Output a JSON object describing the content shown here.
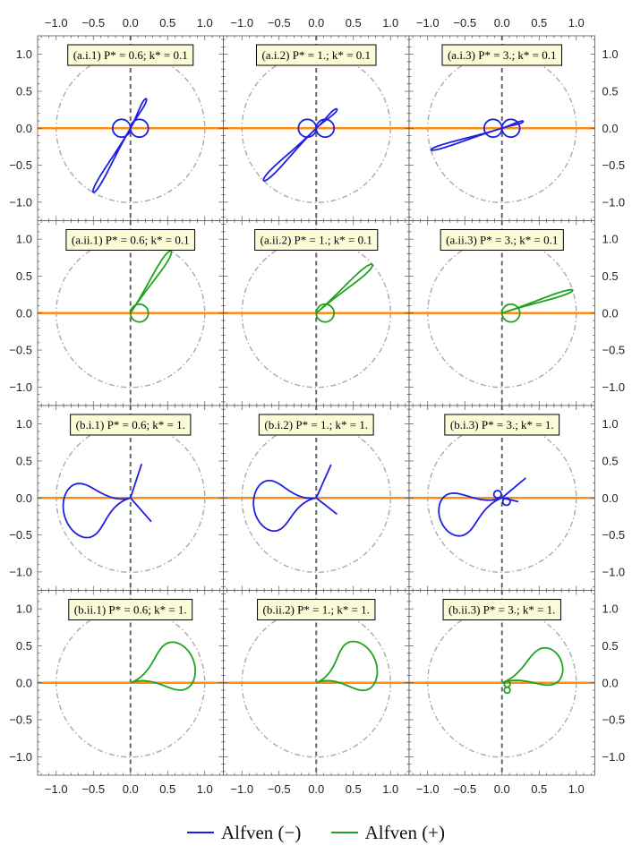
{
  "chart_data": {
    "type": "line",
    "grid": {
      "rows": 4,
      "cols": 3
    },
    "xlim": [
      -1.25,
      1.25
    ],
    "ylim": [
      -1.25,
      1.25
    ],
    "xticks": [
      -1.0,
      -0.5,
      0.0,
      0.5,
      1.0
    ],
    "yticks": [
      -1.0,
      -0.5,
      0.0,
      0.5,
      1.0
    ],
    "xtick_labels": [
      "−1.0",
      "−0.5",
      "0.0",
      "0.5",
      "1.0"
    ],
    "ytick_labels": [
      "−1.0",
      "−0.5",
      "0.0",
      "0.5",
      "1.0"
    ],
    "reference": {
      "unit_circle_radius": 1.0,
      "unit_circle_color": "#aaaaaa",
      "horizontal_line_color": "#ff8c1a",
      "vertical_line_color": "#666666"
    },
    "legend": [
      {
        "name": "Alfven (−)",
        "color": "#1f1fe0"
      },
      {
        "name": "Alfven (+)",
        "color": "#21a321"
      }
    ],
    "panels": [
      {
        "label": "(a.i.1) P* = 0.6;  k* = 0.1",
        "color": "#1f1fe0",
        "loops": [
          {
            "angle": 240,
            "r": 1.0,
            "w": 0.04
          },
          {
            "angle": 62,
            "r": 0.45,
            "w": 0.06
          }
        ],
        "circles": [
          {
            "cx": -0.12,
            "cy": 0.0,
            "r": 0.12
          },
          {
            "cx": 0.12,
            "cy": 0.0,
            "r": 0.12
          }
        ]
      },
      {
        "label": "(a.i.2) P* = 1.;  k* = 0.1",
        "color": "#1f1fe0",
        "loops": [
          {
            "angle": 225,
            "r": 1.0,
            "w": 0.045
          },
          {
            "angle": 43,
            "r": 0.38,
            "w": 0.07
          }
        ],
        "circles": [
          {
            "cx": -0.12,
            "cy": 0.0,
            "r": 0.12
          },
          {
            "cx": 0.12,
            "cy": 0.0,
            "r": 0.12
          }
        ]
      },
      {
        "label": "(a.i.3) P* = 3.;  k* = 0.1",
        "color": "#1f1fe0",
        "loops": [
          {
            "angle": 197,
            "r": 1.0,
            "w": 0.03
          },
          {
            "angle": 18,
            "r": 0.3,
            "w": 0.06
          }
        ],
        "circles": [
          {
            "cx": -0.12,
            "cy": 0.0,
            "r": 0.12
          },
          {
            "cx": 0.12,
            "cy": 0.0,
            "r": 0.12
          }
        ]
      },
      {
        "label": "(a.ii.1) P* = 0.6;  k* = 0.1",
        "color": "#21a321",
        "loops": [
          {
            "angle": 57,
            "r": 1.0,
            "w": 0.05
          }
        ],
        "circles": [
          {
            "cx": 0.12,
            "cy": 0.0,
            "r": 0.12
          }
        ]
      },
      {
        "label": "(a.ii.2) P* = 1.;  k* = 0.1",
        "color": "#21a321",
        "loops": [
          {
            "angle": 41,
            "r": 1.0,
            "w": 0.05
          }
        ],
        "circles": [
          {
            "cx": 0.12,
            "cy": 0.0,
            "r": 0.12
          }
        ]
      },
      {
        "label": "(a.ii.3) P* = 3.;  k* = 0.1",
        "color": "#21a321",
        "loops": [
          {
            "angle": 18,
            "r": 1.0,
            "w": 0.035
          }
        ],
        "circles": [
          {
            "cx": 0.12,
            "cy": 0.0,
            "r": 0.12
          }
        ]
      },
      {
        "label": "(b.i.1) P* = 0.6;  k* = 1.",
        "color": "#1f1fe0",
        "loops": [
          {
            "angle": 195,
            "r": 0.92,
            "w": 0.55
          }
        ],
        "rays": [
          {
            "x": 0.15,
            "y": 0.46
          },
          {
            "x": 0.28,
            "y": -0.32
          }
        ],
        "circles": []
      },
      {
        "label": "(b.i.2) P* = 1.;  k* = 1.",
        "color": "#1f1fe0",
        "loops": [
          {
            "angle": 190,
            "r": 0.85,
            "w": 0.55
          }
        ],
        "rays": [
          {
            "x": 0.2,
            "y": 0.45
          },
          {
            "x": 0.28,
            "y": -0.22
          }
        ],
        "circles": []
      },
      {
        "label": "(b.i.3) P* = 3.;  k* = 1.",
        "color": "#1f1fe0",
        "loops": [
          {
            "angle": 200,
            "r": 0.88,
            "w": 0.45
          }
        ],
        "rays": [
          {
            "x": 0.32,
            "y": 0.27
          },
          {
            "x": 0.22,
            "y": -0.05
          }
        ],
        "circles": [
          {
            "cx": -0.06,
            "cy": 0.05,
            "r": 0.05
          },
          {
            "cx": 0.06,
            "cy": -0.05,
            "r": 0.05
          }
        ]
      },
      {
        "label": "(b.ii.1) P* = 0.6;  k* = 1.",
        "color": "#21a321",
        "loops": [
          {
            "angle": 20,
            "r": 0.9,
            "w": 0.5
          }
        ],
        "circles": []
      },
      {
        "label": "(b.ii.2) P* = 1.;  k* = 1.",
        "color": "#21a321",
        "loops": [
          {
            "angle": 22,
            "r": 0.85,
            "w": 0.55
          }
        ],
        "circles": []
      },
      {
        "label": "(b.ii.3) P* = 3.;  k* = 1.",
        "color": "#21a321",
        "loops": [
          {
            "angle": 20,
            "r": 0.85,
            "w": 0.4
          }
        ],
        "circles": [
          {
            "cx": 0.07,
            "cy": -0.02,
            "r": 0.04
          },
          {
            "cx": 0.07,
            "cy": -0.1,
            "r": 0.04
          }
        ]
      }
    ]
  }
}
